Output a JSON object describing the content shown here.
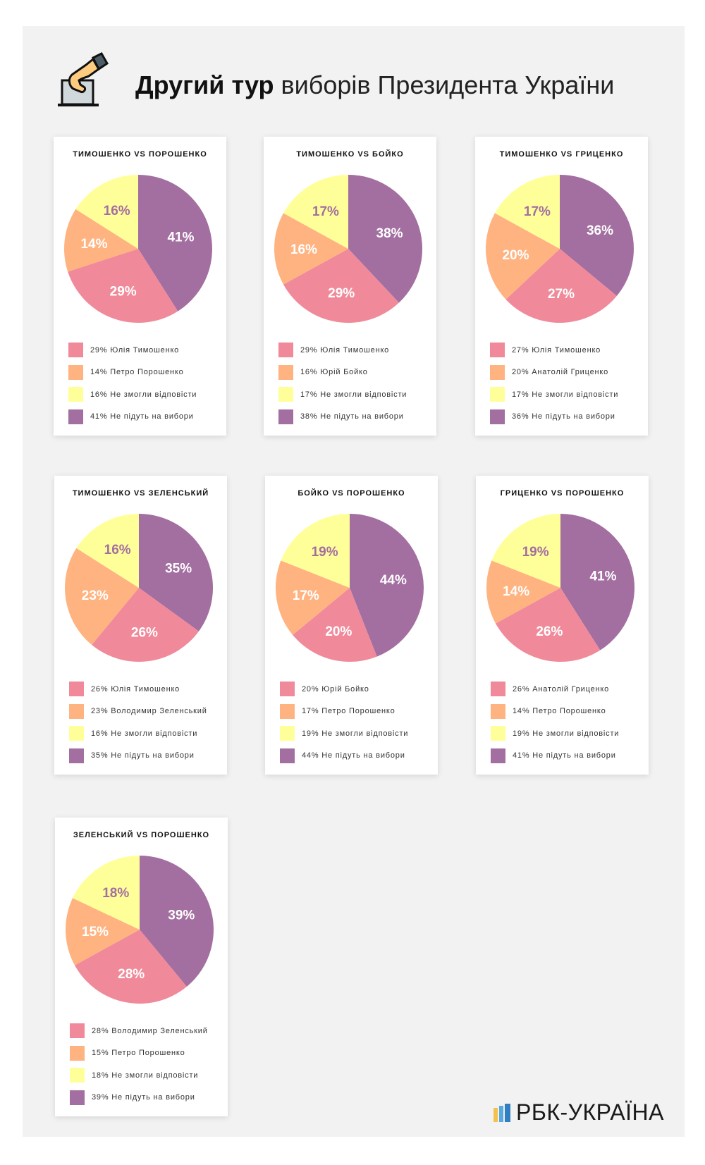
{
  "header": {
    "title_bold": "Другий тур",
    "title_rest": "виборів Президента України",
    "icon": "ballot-box-hand-icon"
  },
  "colors": {
    "candidate_a": "#f08a9a",
    "candidate_b": "#ffb380",
    "no_answer": "#ffff99",
    "wont_vote": "#a36ea0"
  },
  "chart_data": [
    {
      "type": "pie",
      "title": "ТИМОШЕНКО VS ПОРОШЕНКО",
      "slices": [
        {
          "label": "Не підуть на вибори",
          "value": 41,
          "color": "#a36ea0",
          "legend": "41% Не підуть на вибори"
        },
        {
          "label": "Юлія Тимошенко",
          "value": 29,
          "color": "#f08a9a",
          "legend": "29% Юлія Тимошенко"
        },
        {
          "label": "Петро Порошенко",
          "value": 14,
          "color": "#ffb380",
          "legend": "14% Петро Порошенко"
        },
        {
          "label": "Не змогли відповісти",
          "value": 16,
          "color": "#ffff99",
          "legend": "16% Не змогли відповісти"
        }
      ]
    },
    {
      "type": "pie",
      "title": "ТИМОШЕНКО VS БОЙКО",
      "slices": [
        {
          "label": "Не підуть на вибори",
          "value": 38,
          "color": "#a36ea0",
          "legend": "38% Не підуть на вибори"
        },
        {
          "label": "Юлія Тимошенко",
          "value": 29,
          "color": "#f08a9a",
          "legend": "29% Юлія Тимошенко"
        },
        {
          "label": "Юрій Бойко",
          "value": 16,
          "color": "#ffb380",
          "legend": "16% Юрій Бойко"
        },
        {
          "label": "Не змогли відповісти",
          "value": 17,
          "color": "#ffff99",
          "legend": "17% Не змогли відповісти"
        }
      ]
    },
    {
      "type": "pie",
      "title": "ТИМОШЕНКО VS ГРИЦЕНКО",
      "slices": [
        {
          "label": "Не підуть на вибори",
          "value": 36,
          "color": "#a36ea0",
          "legend": "36% Не підуть на вибори"
        },
        {
          "label": "Юлія Тимошенко",
          "value": 27,
          "color": "#f08a9a",
          "legend": "27% Юлія Тимошенко"
        },
        {
          "label": "Анатолій Гриценко",
          "value": 20,
          "color": "#ffb380",
          "legend": "20% Анатолій Гриценко"
        },
        {
          "label": "Не змогли відповісти",
          "value": 17,
          "color": "#ffff99",
          "legend": "17% Не змогли відповісти"
        }
      ]
    },
    {
      "type": "pie",
      "title": "ТИМОШЕНКО VS ЗЕЛЕНСЬКИЙ",
      "slices": [
        {
          "label": "Не підуть на вибори",
          "value": 35,
          "color": "#a36ea0",
          "legend": "35% Не підуть на вибори"
        },
        {
          "label": "Юлія Тимошенко",
          "value": 26,
          "color": "#f08a9a",
          "legend": "26% Юлія Тимошенко"
        },
        {
          "label": "Володимир Зеленський",
          "value": 23,
          "color": "#ffb380",
          "legend": "23% Володимир Зеленський"
        },
        {
          "label": "Не змогли відповісти",
          "value": 16,
          "color": "#ffff99",
          "legend": "16% Не змогли відповісти"
        }
      ]
    },
    {
      "type": "pie",
      "title": "БОЙКО VS ПОРОШЕНКО",
      "slices": [
        {
          "label": "Не підуть на вибори",
          "value": 44,
          "color": "#a36ea0",
          "legend": "44% Не підуть на вибори"
        },
        {
          "label": "Юрій Бойко",
          "value": 20,
          "color": "#f08a9a",
          "legend": "20% Юрій Бойко"
        },
        {
          "label": "Петро Порошенко",
          "value": 17,
          "color": "#ffb380",
          "legend": "17% Петро Порошенко"
        },
        {
          "label": "Не змогли відповісти",
          "value": 19,
          "color": "#ffff99",
          "legend": "19% Не змогли відповісти"
        }
      ]
    },
    {
      "type": "pie",
      "title": "ГРИЦЕНКО VS ПОРОШЕНКО",
      "slices": [
        {
          "label": "Не підуть на вибори",
          "value": 41,
          "color": "#a36ea0",
          "legend": "41% Не підуть на вибори"
        },
        {
          "label": "Анатолій Гриценко",
          "value": 26,
          "color": "#f08a9a",
          "legend": "26% Анатолій Гриценко"
        },
        {
          "label": "Петро Порошенко",
          "value": 14,
          "color": "#ffb380",
          "legend": "14% Петро Порошенко"
        },
        {
          "label": "Не змогли відповісти",
          "value": 19,
          "color": "#ffff99",
          "legend": "19% Не змогли відповісти"
        }
      ]
    },
    {
      "type": "pie",
      "title": "ЗЕЛЕНСЬКИЙ VS ПОРОШЕНКО",
      "slices": [
        {
          "label": "Не підуть на вибори",
          "value": 39,
          "color": "#a36ea0",
          "legend": "39% Не підуть на вибори"
        },
        {
          "label": "Володимир Зеленський",
          "value": 28,
          "color": "#f08a9a",
          "legend": "28% Володимир Зеленський"
        },
        {
          "label": "Петро Порошенко",
          "value": 15,
          "color": "#ffb380",
          "legend": "15% Петро Порошенко"
        },
        {
          "label": "Не змогли відповісти",
          "value": 18,
          "color": "#ffff99",
          "legend": "18% Не змогли відповісти"
        }
      ]
    }
  ],
  "legend_order": [
    1,
    2,
    3,
    0
  ],
  "footer": {
    "logo_text": "РБК-УКРАЇНА"
  }
}
